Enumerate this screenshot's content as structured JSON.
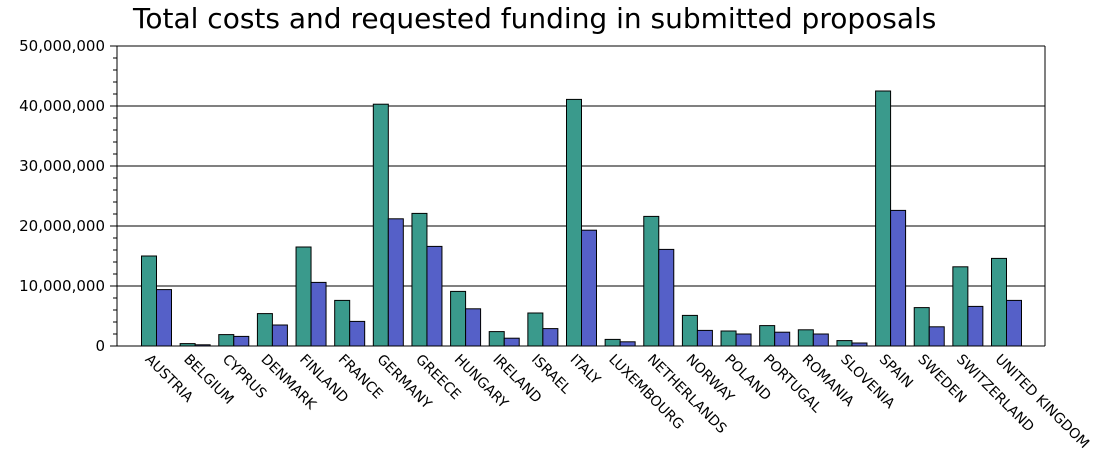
{
  "chart_data": {
    "type": "bar",
    "title": "Total costs and requested funding in submitted proposals",
    "xlabel": "",
    "ylabel": "",
    "ylim": [
      0,
      50000000
    ],
    "yticks": [
      "0",
      "10,000,000",
      "20,000,000",
      "30,000,000",
      "40,000,000",
      "50,000,000"
    ],
    "grid": true,
    "categories": [
      "AUSTRIA",
      "BELGIUM",
      "CYPRUS",
      "DENMARK",
      "FINLAND",
      "FRANCE",
      "GERMANY",
      "GREECE",
      "HUNGARY",
      "IRELAND",
      "ISRAEL",
      "ITALY",
      "LUXEMBOURG",
      "NETHERLANDS",
      "NORWAY",
      "POLAND",
      "PORTUGAL",
      "ROMANIA",
      "SLOVENIA",
      "SPAIN",
      "SWEDEN",
      "SWITZERLAND",
      "UNITED KINGDOM"
    ],
    "series": [
      {
        "color": "#3a9a8c",
        "values": [
          15000000,
          400000,
          1900000,
          5400000,
          16500000,
          7600000,
          40300000,
          22100000,
          9100000,
          2400000,
          5500000,
          41100000,
          1100000,
          21600000,
          5100000,
          2500000,
          3400000,
          2700000,
          900000,
          42500000,
          6400000,
          13200000,
          14600000
        ]
      },
      {
        "color": "#5560c8",
        "values": [
          9400000,
          200000,
          1600000,
          3500000,
          10600000,
          4100000,
          21200000,
          16600000,
          6200000,
          1300000,
          2900000,
          19300000,
          700000,
          16100000,
          2600000,
          2000000,
          2300000,
          2000000,
          500000,
          22600000,
          3200000,
          6600000,
          7600000
        ]
      }
    ]
  }
}
